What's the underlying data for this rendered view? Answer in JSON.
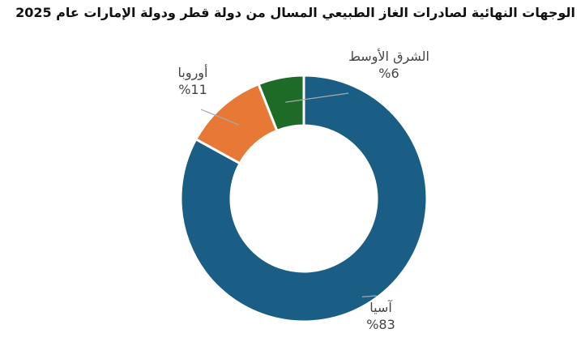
{
  "chart_data": {
    "type": "donut",
    "title": "الوجهات النهائية لصادرات الغاز الطبيعي المسال من دولة قطر ودولة الإمارات عام 2025",
    "categories": [
      "آسيا",
      "أوروبا",
      "الشرق الأوسط"
    ],
    "values": [
      83,
      11,
      6
    ],
    "value_labels": [
      "%83",
      "%11",
      "%6"
    ],
    "unit": "%",
    "colors": [
      "#1a5e85",
      "#e87836",
      "#1e6b27"
    ],
    "start": "top",
    "direction": "clockwise",
    "legend": "none",
    "data_labels": "outside-with-leader-lines"
  }
}
